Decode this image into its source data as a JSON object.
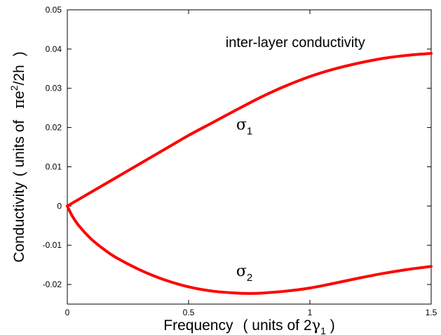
{
  "chart_data": {
    "type": "line",
    "title": "",
    "xlabel": {
      "main": "Frequency",
      "paren_open": "( units of 2",
      "greek": "γ",
      "sub": "1",
      "paren_close": " )"
    },
    "ylabel": {
      "main": "Conductivity",
      "paren_open": "( units of",
      "greek": "π",
      "mid": "e",
      "sup": "2",
      "tail": "/2h",
      "paren_close": ")"
    },
    "xlim": [
      0,
      1.5
    ],
    "ylim": [
      -0.025,
      0.05
    ],
    "xticks": [
      0,
      0.5,
      1,
      1.5
    ],
    "xtick_labels": [
      "0",
      "0.5",
      "1",
      "1.5"
    ],
    "yticks": [
      -0.02,
      -0.01,
      0,
      0.01,
      0.02,
      0.03,
      0.04,
      0.05
    ],
    "ytick_labels": [
      "-0.02",
      "-0.01",
      "0",
      "0.01",
      "0.02",
      "0.03",
      "0.04",
      "0.05"
    ],
    "grid": false,
    "annotations": [
      {
        "text": "inter-layer conductivity",
        "x": 0.94,
        "y": 0.0405
      },
      {
        "greek": "σ",
        "sub": "1",
        "x": 0.73,
        "y": 0.0195
      },
      {
        "greek": "σ",
        "sub": "2",
        "x": 0.73,
        "y": -0.0178
      }
    ],
    "series": [
      {
        "color": "#ff0000",
        "x": [
          0,
          0.1,
          0.2,
          0.3,
          0.4,
          0.5,
          0.6,
          0.7,
          0.8,
          0.9,
          1.0,
          1.1,
          1.2,
          1.3,
          1.4,
          1.5
        ],
        "y": [
          0,
          0.0036,
          0.0072,
          0.0108,
          0.0144,
          0.018,
          0.0213,
          0.0246,
          0.0278,
          0.0306,
          0.033,
          0.0349,
          0.0364,
          0.0376,
          0.0384,
          0.0389
        ]
      },
      {
        "color": "#ff0000",
        "x": [
          0,
          0.02,
          0.05,
          0.1,
          0.15,
          0.2,
          0.3,
          0.4,
          0.5,
          0.6,
          0.7,
          0.75,
          0.8,
          0.9,
          1.0,
          1.1,
          1.2,
          1.3,
          1.4,
          1.5
        ],
        "y": [
          0,
          -0.0025,
          -0.0052,
          -0.0085,
          -0.011,
          -0.0131,
          -0.0163,
          -0.0188,
          -0.0206,
          -0.0217,
          -0.0222,
          -0.0223,
          -0.0222,
          -0.0217,
          -0.0209,
          -0.0197,
          -0.0184,
          -0.0172,
          -0.0162,
          -0.0154
        ]
      }
    ]
  }
}
